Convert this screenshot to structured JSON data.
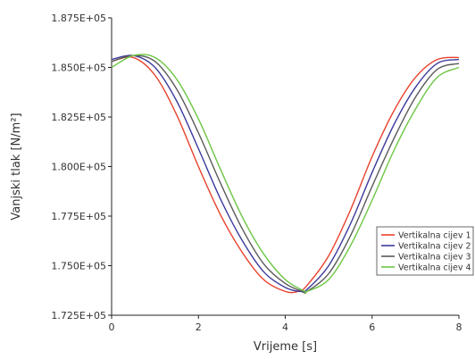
{
  "chart_data": {
    "type": "line",
    "title": "",
    "xlabel": "Vrijeme [s]",
    "ylabel": "Vanjski tlak  [N/m²]",
    "xlim": [
      0,
      8
    ],
    "ylim": [
      172500,
      187500
    ],
    "xticks": [
      0,
      2,
      4,
      6,
      8
    ],
    "xtick_labels": [
      "0",
      "2",
      "4",
      "6",
      "8"
    ],
    "yticks": [
      172500,
      175000,
      177500,
      180000,
      182500,
      185000,
      187500
    ],
    "ytick_labels": [
      "1.725E+05",
      "1.750E+05",
      "1.775E+05",
      "1.800E+05",
      "1.825E+05",
      "1.850E+05",
      "1.875E+05"
    ],
    "grid": false,
    "legend_position": "right",
    "series": [
      {
        "name": "Vertikalna cijev 1",
        "color": "#e8412c",
        "x": [
          0,
          0.5,
          1,
          1.5,
          2,
          2.5,
          3,
          3.5,
          4,
          4.3,
          4.5,
          5,
          5.5,
          6,
          6.5,
          7,
          7.5,
          8
        ],
        "y": [
          185300,
          185500,
          184600,
          182600,
          180000,
          177600,
          175700,
          174300,
          173700,
          173700,
          174000,
          175500,
          177800,
          180500,
          182800,
          184500,
          185400,
          185500
        ]
      },
      {
        "name": "Vertikalna cijev 2",
        "color": "#3b3b9c",
        "x": [
          0,
          0.5,
          1,
          1.5,
          2,
          2.5,
          3,
          3.5,
          4,
          4.35,
          4.5,
          5,
          5.5,
          6,
          6.5,
          7,
          7.5,
          8
        ],
        "y": [
          185400,
          185600,
          185000,
          183300,
          180900,
          178400,
          176300,
          174700,
          173900,
          173700,
          173800,
          175000,
          177100,
          179700,
          182100,
          184000,
          185200,
          185400
        ]
      },
      {
        "name": "Vertikalna cijev 3",
        "color": "#5a5a5a",
        "x": [
          0,
          0.5,
          1,
          1.5,
          2,
          2.5,
          3,
          3.5,
          4,
          4.4,
          4.5,
          5,
          5.5,
          6,
          6.5,
          7,
          7.5,
          8
        ],
        "y": [
          185300,
          185600,
          185300,
          183900,
          181700,
          179200,
          176900,
          175100,
          174100,
          173700,
          173700,
          174600,
          176500,
          179000,
          181400,
          183500,
          184900,
          185200
        ]
      },
      {
        "name": "Vertikalna cijev 4",
        "color": "#6cc644",
        "x": [
          0,
          0.5,
          1,
          1.5,
          2,
          2.5,
          3,
          3.5,
          4,
          4.45,
          4.5,
          5,
          5.5,
          6,
          6.5,
          7,
          7.5,
          8
        ],
        "y": [
          185000,
          185600,
          185500,
          184400,
          182400,
          179900,
          177500,
          175600,
          174300,
          173700,
          173700,
          174300,
          176000,
          178300,
          180800,
          182900,
          184500,
          185000
        ]
      }
    ]
  }
}
